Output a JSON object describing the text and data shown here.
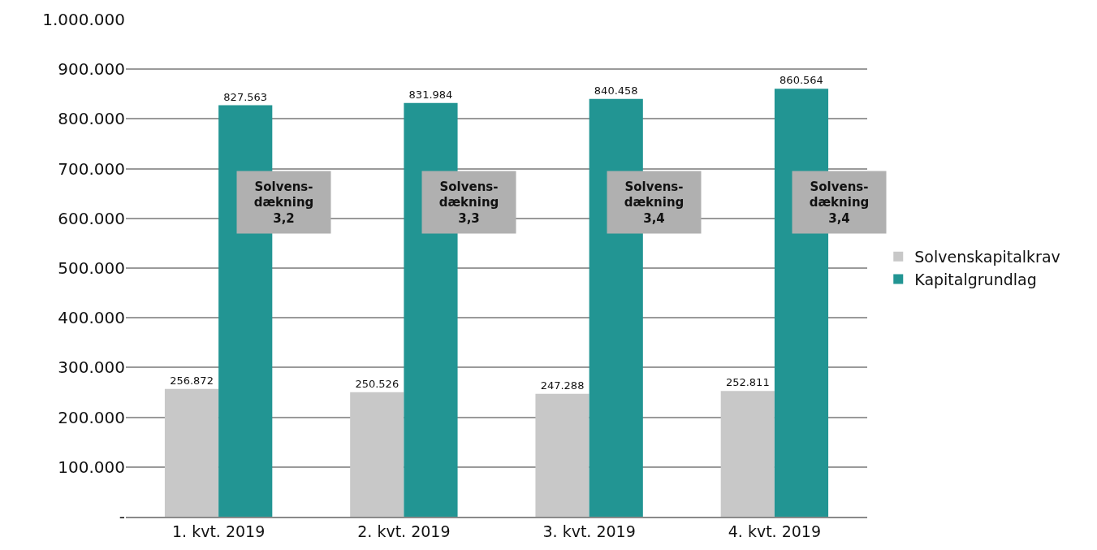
{
  "chart_data": {
    "type": "bar",
    "categories": [
      "1. kvt. 2019",
      "2. kvt. 2019",
      "3. kvt. 2019",
      "4. kvt. 2019"
    ],
    "series": [
      {
        "name": "Solvenskapitalkrav",
        "color": "#c8c8c8",
        "values": [
          256872,
          250526,
          247288,
          252811
        ],
        "value_labels": [
          "256.872",
          "250.526",
          "247.288",
          "252.811"
        ]
      },
      {
        "name": "Kapitalgrundlag",
        "color": "#229593",
        "values": [
          827563,
          831984,
          840458,
          860564
        ],
        "value_labels": [
          "827.563",
          "831.984",
          "840.458",
          "860.564"
        ]
      }
    ],
    "ylim": [
      0,
      1000000
    ],
    "yticks": [
      {
        "value": 0,
        "label": "-"
      },
      {
        "value": 100000,
        "label": "100.000"
      },
      {
        "value": 200000,
        "label": "200.000"
      },
      {
        "value": 300000,
        "label": "300.000"
      },
      {
        "value": 400000,
        "label": "400.000"
      },
      {
        "value": 500000,
        "label": "500.000"
      },
      {
        "value": 600000,
        "label": "600.000"
      },
      {
        "value": 700000,
        "label": "700.000"
      },
      {
        "value": 800000,
        "label": "800.000"
      },
      {
        "value": 900000,
        "label": "900.000"
      },
      {
        "value": 1000000,
        "label": "1.000.000"
      }
    ],
    "annotations": [
      "Solvens-\ndækning\n3,2",
      "Solvens-\ndækning\n3,3",
      "Solvens-\ndækning\n3,4",
      "Solvens-\ndækning\n3,4"
    ],
    "grid": "y",
    "legend": "right"
  }
}
